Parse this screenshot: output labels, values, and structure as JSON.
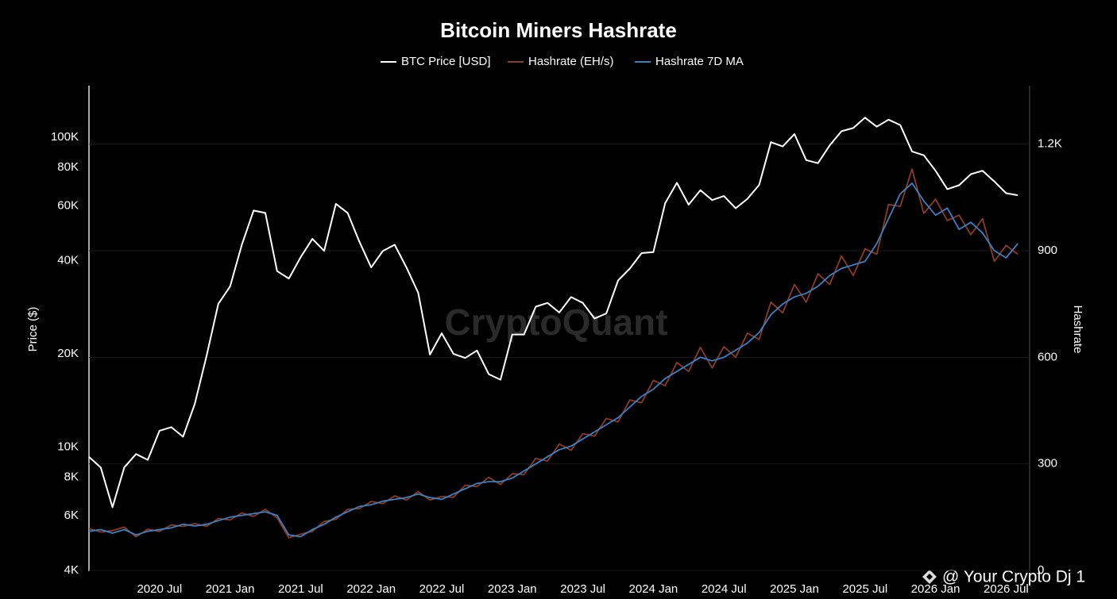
{
  "chart_data": {
    "type": "line",
    "title": "Bitcoin Miners Hashrate",
    "ylabel": "Price ($)",
    "y2label": "Hashrate",
    "annotations": [
      "CryptoQuant",
      "@ Your Crypto Dj 1"
    ],
    "log_scale_y": true,
    "grid": true,
    "xlim": [
      "2020-01",
      "2026-09"
    ],
    "xticks": [
      {
        "value": "2020-07",
        "label": "2020 Jul"
      },
      {
        "value": "2021-01",
        "label": "2021 Jan"
      },
      {
        "value": "2021-07",
        "label": "2021 Jul"
      },
      {
        "value": "2022-01",
        "label": "2022 Jan"
      },
      {
        "value": "2022-07",
        "label": "2022 Jul"
      },
      {
        "value": "2023-01",
        "label": "2023 Jan"
      },
      {
        "value": "2023-07",
        "label": "2023 Jul"
      },
      {
        "value": "2024-01",
        "label": "2024 Jan"
      },
      {
        "value": "2024-07",
        "label": "2024 Jul"
      },
      {
        "value": "2025-01",
        "label": "2025 Jan"
      },
      {
        "value": "2025-07",
        "label": "2025 Jul"
      },
      {
        "value": "2026-01",
        "label": "2026 Jan"
      },
      {
        "value": "2026-07",
        "label": "2026 Jul"
      }
    ],
    "ylim": [
      4000,
      145000
    ],
    "yticks": [
      {
        "value": 4000,
        "label": "4K"
      },
      {
        "value": 6000,
        "label": "6K"
      },
      {
        "value": 8000,
        "label": "8K"
      },
      {
        "value": 10000,
        "label": "10K"
      },
      {
        "value": 20000,
        "label": "20K"
      },
      {
        "value": 40000,
        "label": "40K"
      },
      {
        "value": 60000,
        "label": "60K"
      },
      {
        "value": 80000,
        "label": "80K"
      },
      {
        "value": 100000,
        "label": "100K"
      }
    ],
    "y2lim": [
      0,
      1360
    ],
    "y2ticks": [
      0,
      300,
      600,
      900,
      {
        "value": 1200,
        "label": "1.2K"
      }
    ],
    "x": [
      "2020-01",
      "2020-02",
      "2020-03",
      "2020-04",
      "2020-05",
      "2020-06",
      "2020-07",
      "2020-08",
      "2020-09",
      "2020-10",
      "2020-11",
      "2020-12",
      "2021-01",
      "2021-02",
      "2021-03",
      "2021-04",
      "2021-05",
      "2021-06",
      "2021-07",
      "2021-08",
      "2021-09",
      "2021-10",
      "2021-11",
      "2021-12",
      "2022-01",
      "2022-02",
      "2022-03",
      "2022-04",
      "2022-05",
      "2022-06",
      "2022-07",
      "2022-08",
      "2022-09",
      "2022-10",
      "2022-11",
      "2022-12",
      "2023-01",
      "2023-02",
      "2023-03",
      "2023-04",
      "2023-05",
      "2023-06",
      "2023-07",
      "2023-08",
      "2023-09",
      "2023-10",
      "2023-11",
      "2023-12",
      "2024-01",
      "2024-02",
      "2024-03",
      "2024-04",
      "2024-05",
      "2024-06",
      "2024-07",
      "2024-08",
      "2024-09",
      "2024-10",
      "2024-11",
      "2024-12",
      "2025-01",
      "2025-02",
      "2025-03",
      "2025-04",
      "2025-05",
      "2025-06",
      "2025-07",
      "2025-08",
      "2025-09",
      "2025-10",
      "2025-11",
      "2025-12",
      "2026-01",
      "2026-02",
      "2026-03",
      "2026-04",
      "2026-05",
      "2026-06",
      "2026-07",
      "2026-08"
    ],
    "series": [
      {
        "name": "BTC Price [USD]",
        "color": "#ffffff",
        "axis": "y",
        "values": [
          9300,
          8600,
          6400,
          8600,
          9500,
          9100,
          11300,
          11600,
          10800,
          13800,
          19700,
          29000,
          33000,
          45000,
          58000,
          57000,
          37000,
          35000,
          41000,
          47000,
          43000,
          61000,
          57000,
          46000,
          38000,
          43000,
          45000,
          38000,
          31500,
          19900,
          23300,
          20000,
          19400,
          20500,
          17200,
          16500,
          23100,
          23100,
          28400,
          29200,
          27200,
          30500,
          29200,
          26000,
          27000,
          34500,
          37700,
          42300,
          42600,
          61200,
          71300,
          60600,
          67500,
          62700,
          64600,
          59000,
          63300,
          70200,
          96400,
          93400,
          102400,
          84400,
          82500,
          94200,
          104600,
          107100,
          115700,
          108200,
          114000,
          109500,
          90000,
          87500,
          78000,
          68000,
          70000,
          76000,
          78000,
          72000,
          66000,
          65000
        ]
      },
      {
        "name": "Hashrate (EH/s)",
        "color": "#8e3a26",
        "axis": "y2",
        "values": [
          118,
          108,
          112,
          122,
          95,
          116,
          110,
          128,
          124,
          132,
          124,
          146,
          142,
          162,
          152,
          172,
          148,
          92,
          102,
          110,
          138,
          144,
          172,
          174,
          194,
          188,
          210,
          198,
          222,
          198,
          208,
          206,
          240,
          236,
          262,
          242,
          272,
          270,
          315,
          308,
          356,
          338,
          385,
          378,
          428,
          418,
          480,
          472,
          535,
          520,
          585,
          560,
          628,
          570,
          630,
          600,
          668,
          650,
          755,
          725,
          805,
          755,
          835,
          805,
          885,
          830,
          905,
          890,
          1030,
          1025,
          1130,
          1005,
          1045,
          985,
          1000,
          945,
          990,
          870,
          915,
          890
        ]
      },
      {
        "name": "Hashrate 7D MA",
        "color": "#3b7fc4",
        "axis": "y2",
        "values": [
          110,
          115,
          105,
          115,
          100,
          110,
          115,
          120,
          130,
          125,
          130,
          140,
          150,
          155,
          160,
          165,
          155,
          100,
          95,
          115,
          130,
          150,
          165,
          180,
          185,
          195,
          200,
          205,
          215,
          205,
          200,
          215,
          230,
          245,
          250,
          250,
          260,
          280,
          300,
          320,
          340,
          350,
          370,
          390,
          410,
          430,
          460,
          490,
          510,
          540,
          560,
          580,
          600,
          590,
          600,
          620,
          640,
          670,
          720,
          750,
          770,
          780,
          800,
          830,
          850,
          860,
          870,
          920,
          990,
          1060,
          1090,
          1040,
          1000,
          1020,
          960,
          980,
          950,
          900,
          880,
          920
        ]
      }
    ]
  }
}
